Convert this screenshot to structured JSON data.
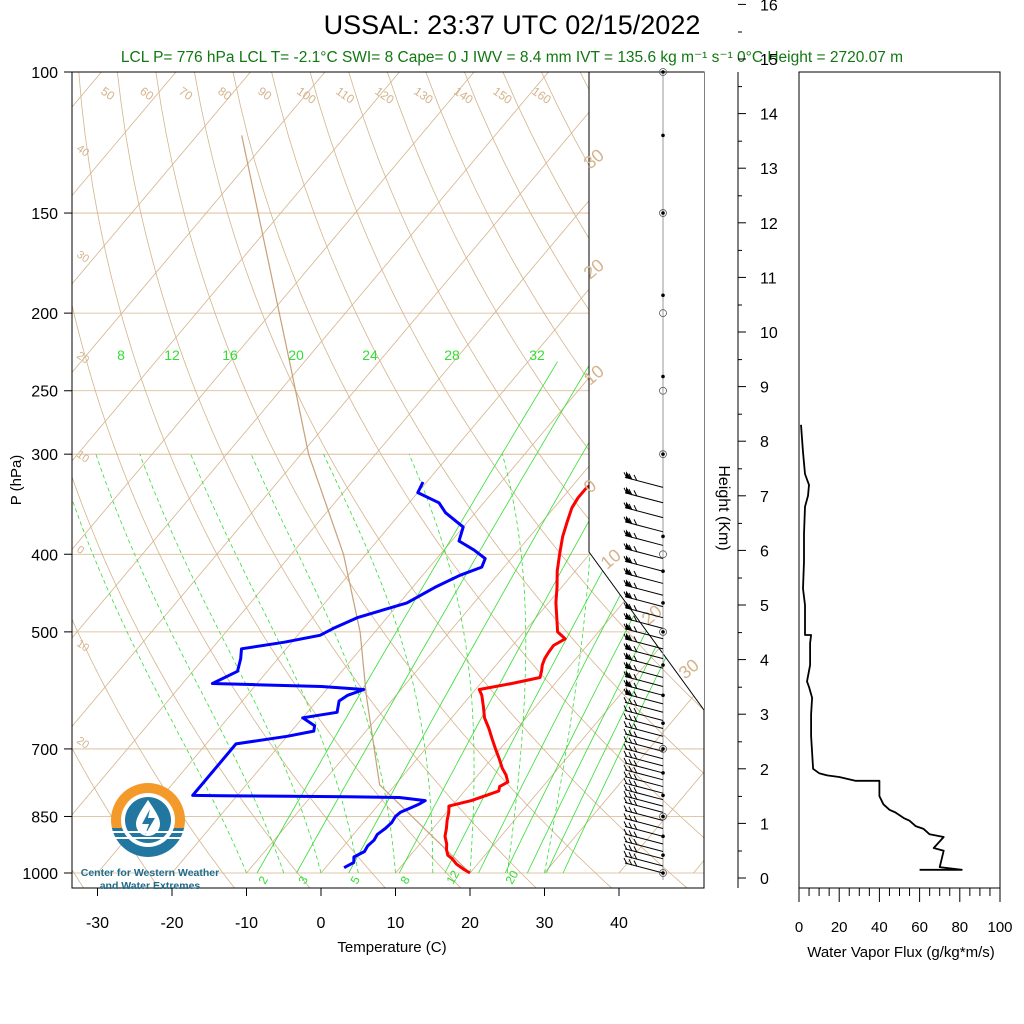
{
  "header": {
    "title": "USSAL: 23:37 UTC 02/15/2022",
    "subtitle": "LCL P= 776 hPa  LCL T= -2.1°C  SWI= 8  Cape= 0 J  IWV = 8.4 mm  IVT = 135.6 kg m⁻¹ s⁻¹  0°C Height = 2720.07 m"
  },
  "logo": {
    "line1": "Center for Western Weather",
    "line2": "and Water Extremes"
  },
  "colors": {
    "temperature": "#ff0000",
    "dewpoint": "#0000ff",
    "mixing_ratio": "#33dd33",
    "adiabats": "#d4b48c",
    "parcel": "#c8a078",
    "flux": "#000000",
    "logo_orange": "#f39a2a",
    "logo_blue": "#2277a0"
  },
  "chart_data": [
    {
      "type": "line",
      "subtype": "skew-T log-P diagram",
      "xlabel": "Temperature (C)",
      "ylabel": "P (hPa)",
      "xlim": [
        -33,
        52
      ],
      "ylim": [
        1000,
        100
      ],
      "y_scale": "log",
      "xticks": [
        -30,
        -20,
        -10,
        0,
        10,
        20,
        30,
        40
      ],
      "yticks": [
        100,
        150,
        200,
        250,
        300,
        400,
        500,
        700,
        850,
        1000
      ],
      "mixing_ratio_labels_top": [
        8,
        12,
        16,
        20,
        24,
        28,
        32
      ],
      "mixing_ratio_labels_bottom": [
        2,
        3,
        5,
        8,
        12,
        20
      ],
      "adiabat_labels_top": [
        50,
        60,
        70,
        80,
        90,
        100,
        110,
        120,
        130,
        140,
        150,
        160
      ],
      "adiabat_labels_left": [
        40,
        30,
        20,
        10,
        0,
        10,
        20
      ],
      "isotherm_labels_right": [
        30,
        20,
        10,
        0,
        10,
        20,
        30
      ],
      "series": [
        {
          "name": "Temperature",
          "points": [
            [
              1000,
              20.0
            ],
            [
              990,
              18.8
            ],
            [
              975,
              17.2
            ],
            [
              960,
              16.0
            ],
            [
              950,
              15.0
            ],
            [
              935,
              14.2
            ],
            [
              920,
              13.6
            ],
            [
              900,
              12.5
            ],
            [
              880,
              11.8
            ],
            [
              860,
              11.0
            ],
            [
              840,
              10.3
            ],
            [
              825,
              9.6
            ],
            [
              812,
              12.0
            ],
            [
              800,
              13.4
            ],
            [
              790,
              14.6
            ],
            [
              780,
              14.2
            ],
            [
              770,
              14.8
            ],
            [
              755,
              13.8
            ],
            [
              740,
              12.5
            ],
            [
              720,
              11.0
            ],
            [
              700,
              9.4
            ],
            [
              680,
              7.8
            ],
            [
              660,
              6.2
            ],
            [
              640,
              4.4
            ],
            [
              620,
              3.0
            ],
            [
              600,
              1.5
            ],
            [
              590,
              0.5
            ],
            [
              580,
              4.2
            ],
            [
              570,
              7.3
            ],
            [
              560,
              6.8
            ],
            [
              550,
              6.2
            ],
            [
              540,
              5.8
            ],
            [
              530,
              5.6
            ],
            [
              520,
              5.5
            ],
            [
              510,
              6.3
            ],
            [
              500,
              4.5
            ],
            [
              480,
              2.8
            ],
            [
              460,
              1.0
            ],
            [
              440,
              -0.6
            ],
            [
              420,
              -2.4
            ],
            [
              400,
              -4.0
            ],
            [
              380,
              -5.6
            ],
            [
              365,
              -6.6
            ],
            [
              350,
              -7.6
            ],
            [
              340,
              -7.9
            ],
            [
              330,
              -7.9
            ],
            [
              325,
              -7.0
            ]
          ]
        },
        {
          "name": "Dewpoint",
          "points": [
            [
              985,
              2.5
            ],
            [
              970,
              3.2
            ],
            [
              955,
              2.6
            ],
            [
              940,
              3.4
            ],
            [
              925,
              3.2
            ],
            [
              910,
              3.4
            ],
            [
              895,
              3.2
            ],
            [
              880,
              3.6
            ],
            [
              865,
              3.8
            ],
            [
              850,
              3.6
            ],
            [
              840,
              3.8
            ],
            [
              830,
              4.6
            ],
            [
              820,
              5.4
            ],
            [
              812,
              5.8
            ],
            [
              805,
              2.0
            ],
            [
              803,
              -5.0
            ],
            [
              802,
              -13.0
            ],
            [
              801,
              -22.0
            ],
            [
              800,
              -26.0
            ],
            [
              690,
              -26.0
            ],
            [
              680,
              -22.0
            ],
            [
              675,
              -20.0
            ],
            [
              665,
              -17.0
            ],
            [
              655,
              -17.5
            ],
            [
              640,
              -20.0
            ],
            [
              630,
              -16.0
            ],
            [
              610,
              -17.0
            ],
            [
              600,
              -16.5
            ],
            [
              590,
              -15.0
            ],
            [
              585,
              -21.0
            ],
            [
              582,
              -30.0
            ],
            [
              580,
              -36.0
            ],
            [
              560,
              -34.0
            ],
            [
              540,
              -35.0
            ],
            [
              525,
              -36.0
            ],
            [
              515,
              -31.0
            ],
            [
              505,
              -27.0
            ],
            [
              495,
              -26.0
            ],
            [
              480,
              -24.0
            ],
            [
              460,
              -19.0
            ],
            [
              440,
              -17.0
            ],
            [
              425,
              -15.0
            ],
            [
              415,
              -13.0
            ],
            [
              405,
              -13.5
            ],
            [
              395,
              -16.0
            ],
            [
              385,
              -19.0
            ],
            [
              370,
              -20.0
            ],
            [
              355,
              -24.0
            ],
            [
              345,
              -26.0
            ],
            [
              335,
              -30.0
            ],
            [
              325,
              -30.5
            ]
          ]
        },
        {
          "name": "Parcel",
          "points": [
            [
              1000,
              20.0
            ],
            [
              776,
              -2.1
            ],
            [
              600,
              -14.0
            ],
            [
              500,
              -22.0
            ],
            [
              400,
              -33.0
            ],
            [
              300,
              -49.0
            ],
            [
              230,
              -62.0
            ],
            [
              120,
              -94.0
            ]
          ]
        }
      ],
      "wind_levels_hpa": [
        1000,
        980,
        960,
        940,
        920,
        900,
        880,
        860,
        840,
        825,
        810,
        795,
        780,
        765,
        750,
        735,
        720,
        705,
        690,
        675,
        660,
        645,
        630,
        615,
        600,
        585,
        570,
        555,
        540,
        525,
        510,
        495,
        480,
        465,
        450,
        435,
        420,
        405,
        390,
        375,
        360,
        345,
        330
      ],
      "height_marker_levels_hpa": [
        1000,
        950,
        900,
        850,
        800,
        750,
        700,
        650,
        600,
        550,
        500,
        460,
        420,
        380,
        300,
        240,
        190,
        150,
        120,
        100
      ]
    },
    {
      "type": "line",
      "xlabel": "Water Vapor Flux (g/kg*m/s)",
      "ylabel": "Height (Km)",
      "xlim": [
        0,
        100
      ],
      "ylim": [
        0,
        16.5
      ],
      "xticks": [
        0,
        20,
        40,
        60,
        80,
        100
      ],
      "yticks": [
        0,
        1,
        2,
        3,
        4,
        5,
        6,
        7,
        8,
        9,
        10,
        11,
        12,
        13,
        14,
        15,
        16
      ],
      "series": [
        {
          "name": "Water Vapor Flux",
          "points": [
            [
              60,
              0.15
            ],
            [
              81,
              0.15
            ],
            [
              70,
              0.2
            ],
            [
              72,
              0.5
            ],
            [
              67,
              0.55
            ],
            [
              72,
              0.75
            ],
            [
              65,
              0.8
            ],
            [
              62,
              0.9
            ],
            [
              58,
              0.95
            ],
            [
              55,
              1.05
            ],
            [
              52,
              1.1
            ],
            [
              48,
              1.2
            ],
            [
              45,
              1.25
            ],
            [
              42,
              1.35
            ],
            [
              40,
              1.5
            ],
            [
              40,
              1.78
            ],
            [
              28,
              1.78
            ],
            [
              20,
              1.85
            ],
            [
              14,
              1.88
            ],
            [
              10,
              1.92
            ],
            [
              7,
              2.0
            ],
            [
              6,
              2.6
            ],
            [
              6,
              3.0
            ],
            [
              6.5,
              3.3
            ],
            [
              5,
              3.5
            ],
            [
              4,
              3.6
            ],
            [
              5.5,
              3.9
            ],
            [
              5.5,
              4.3
            ],
            [
              6,
              4.45
            ],
            [
              3,
              4.45
            ],
            [
              3,
              5.0
            ],
            [
              2,
              5.3
            ],
            [
              2.5,
              5.8
            ],
            [
              2.5,
              6.3
            ],
            [
              3,
              6.8
            ],
            [
              4.5,
              7.0
            ],
            [
              5,
              7.2
            ],
            [
              3,
              7.4
            ],
            [
              2,
              7.8
            ],
            [
              1,
              8.3
            ]
          ]
        }
      ]
    }
  ]
}
